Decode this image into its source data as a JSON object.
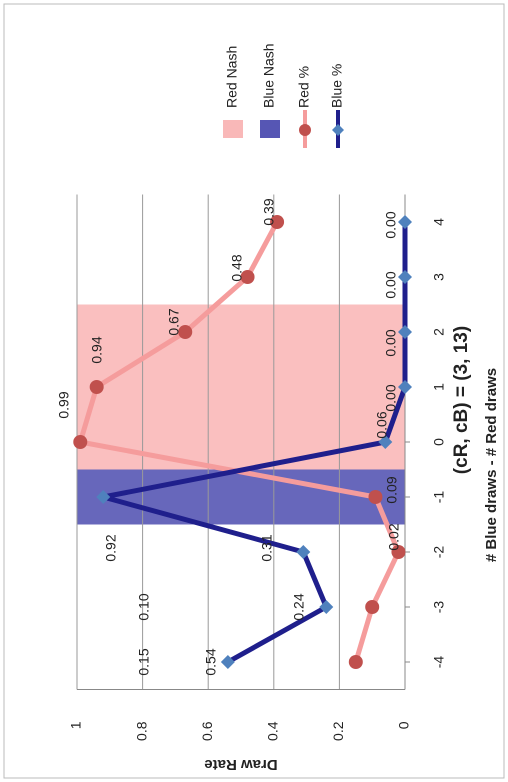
{
  "chart_data": {
    "type": "combo",
    "title": "(cR, cB) = (3, 13)",
    "x_label": "# Blue draws - # Red draws",
    "y_label": "Draw Rate",
    "categories": [
      -4,
      -3,
      -2,
      -1,
      0,
      1,
      2,
      3,
      4
    ],
    "ylim": [
      0,
      1
    ],
    "yticks": [
      0,
      {
        "value": 0.2,
        "label": "0.2"
      },
      {
        "value": 0.4,
        "label": "0.4"
      },
      {
        "value": 0.6,
        "label": "0.6"
      },
      {
        "value": 0.8,
        "label": "0.8"
      },
      1
    ],
    "grid": true,
    "legend": "right",
    "series": [
      {
        "name": "Red Nash",
        "type": "bar",
        "color": "#f9b8b8",
        "values": [
          null,
          null,
          null,
          null,
          1,
          1,
          1,
          null,
          null
        ]
      },
      {
        "name": "Blue Nash",
        "type": "bar",
        "color": "#5656b4",
        "values": [
          null,
          null,
          null,
          1,
          null,
          null,
          null,
          null,
          null
        ]
      },
      {
        "name": "Red %",
        "type": "line",
        "color": "#f59c9c",
        "marker": "circle",
        "marker_color": "#c0504d",
        "values": [
          0.15,
          0.1,
          0.02,
          0.09,
          0.99,
          0.94,
          0.67,
          0.48,
          0.39
        ],
        "value_labels": [
          "0.15",
          "0.10",
          "0.02",
          "0.09",
          "0.99",
          "0.94",
          "0.67",
          "0.48",
          "0.39"
        ]
      },
      {
        "name": "Blue %",
        "type": "line",
        "color": "#1f1f8c",
        "marker": "diamond",
        "marker_color": "#4f81bd",
        "values": [
          0.54,
          0.24,
          0.31,
          0.92,
          0.06,
          0,
          0,
          0,
          0
        ],
        "value_labels": [
          "0.54",
          "0.24",
          "0.31",
          "0.92",
          "0.06",
          "0.00",
          "0.00",
          "0.00",
          "0.00"
        ]
      }
    ]
  }
}
